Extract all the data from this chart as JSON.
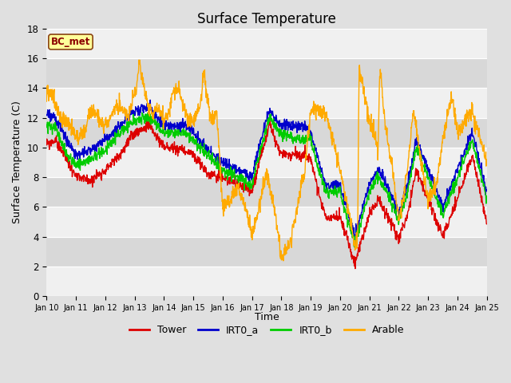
{
  "title": "Surface Temperature",
  "xlabel": "Time",
  "ylabel": "Surface Temperature (C)",
  "ylim": [
    0,
    18
  ],
  "annotation": "BC_met",
  "bg_color": "#e0e0e0",
  "band_color_dark": "#d8d8d8",
  "band_color_light": "#f0f0f0",
  "legend_entries": [
    "Tower",
    "IRT0_a",
    "IRT0_b",
    "Arable"
  ],
  "line_colors": [
    "#dd0000",
    "#0000cc",
    "#00cc00",
    "#ffaa00"
  ],
  "xtick_labels": [
    "Jan 10",
    "Jan 11",
    "Jan 12",
    "Jan 13",
    "Jan 14",
    "Jan 15",
    "Jan 16",
    "Jan 17",
    "Jan 18",
    "Jan 19",
    "Jan 20",
    "Jan 21",
    "Jan 22",
    "Jan 23",
    "Jan 24",
    "Jan 25"
  ],
  "ytick_values": [
    0,
    2,
    4,
    6,
    8,
    10,
    12,
    14,
    16,
    18
  ]
}
